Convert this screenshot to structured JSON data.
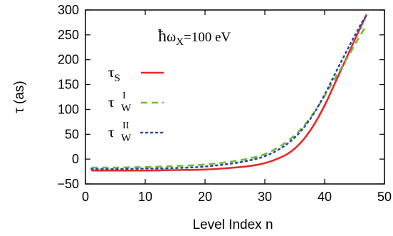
{
  "chart_data": {
    "type": "line",
    "xlabel": "Level Index n",
    "ylabel": "τ (as)",
    "xlim": [
      0,
      50
    ],
    "ylim": [
      -50,
      300
    ],
    "x_ticks": [
      0,
      10,
      20,
      30,
      40,
      50
    ],
    "y_ticks": [
      -50,
      0,
      50,
      100,
      150,
      200,
      250,
      300
    ],
    "grid": false,
    "legend_placement": "upper-left inside",
    "annotation": {
      "hbar": "ħ",
      "omega": "ω",
      "sub": "X",
      "rest": "=100 eV"
    },
    "series": [
      {
        "name": "τS",
        "base": "τ",
        "sub": "S",
        "sup": "",
        "color": "#e8282b",
        "dash": "",
        "x": [
          1,
          5,
          10,
          15,
          20,
          25,
          28,
          30,
          32,
          34,
          36,
          38,
          40,
          42,
          44,
          46,
          47
        ],
        "y": [
          -23,
          -23,
          -23,
          -22,
          -21,
          -17,
          -13,
          -8,
          0,
          12,
          33,
          65,
          108,
          160,
          213,
          265,
          291
        ]
      },
      {
        "name": "τWI",
        "base": "τ",
        "sub": "W",
        "sup": "I",
        "color": "#6cbf3c",
        "dash": "9,6",
        "x": [
          1,
          5,
          10,
          15,
          20,
          25,
          28,
          30,
          32,
          34,
          36,
          38,
          40,
          42,
          44,
          46,
          47
        ],
        "y": [
          -17,
          -17,
          -16,
          -14,
          -11,
          -4,
          3,
          10,
          22,
          38,
          60,
          90,
          127,
          168,
          208,
          250,
          268
        ]
      },
      {
        "name": "τWII",
        "base": "τ",
        "sub": "W",
        "sup": "II",
        "color": "#2b4c9a",
        "dash": "2,5",
        "x": [
          1,
          5,
          10,
          15,
          20,
          25,
          28,
          30,
          32,
          34,
          36,
          38,
          40,
          42,
          44,
          46,
          47
        ],
        "y": [
          -20,
          -20,
          -19,
          -18,
          -15,
          -8,
          -1,
          6,
          17,
          33,
          56,
          88,
          130,
          178,
          225,
          270,
          289
        ]
      }
    ]
  }
}
